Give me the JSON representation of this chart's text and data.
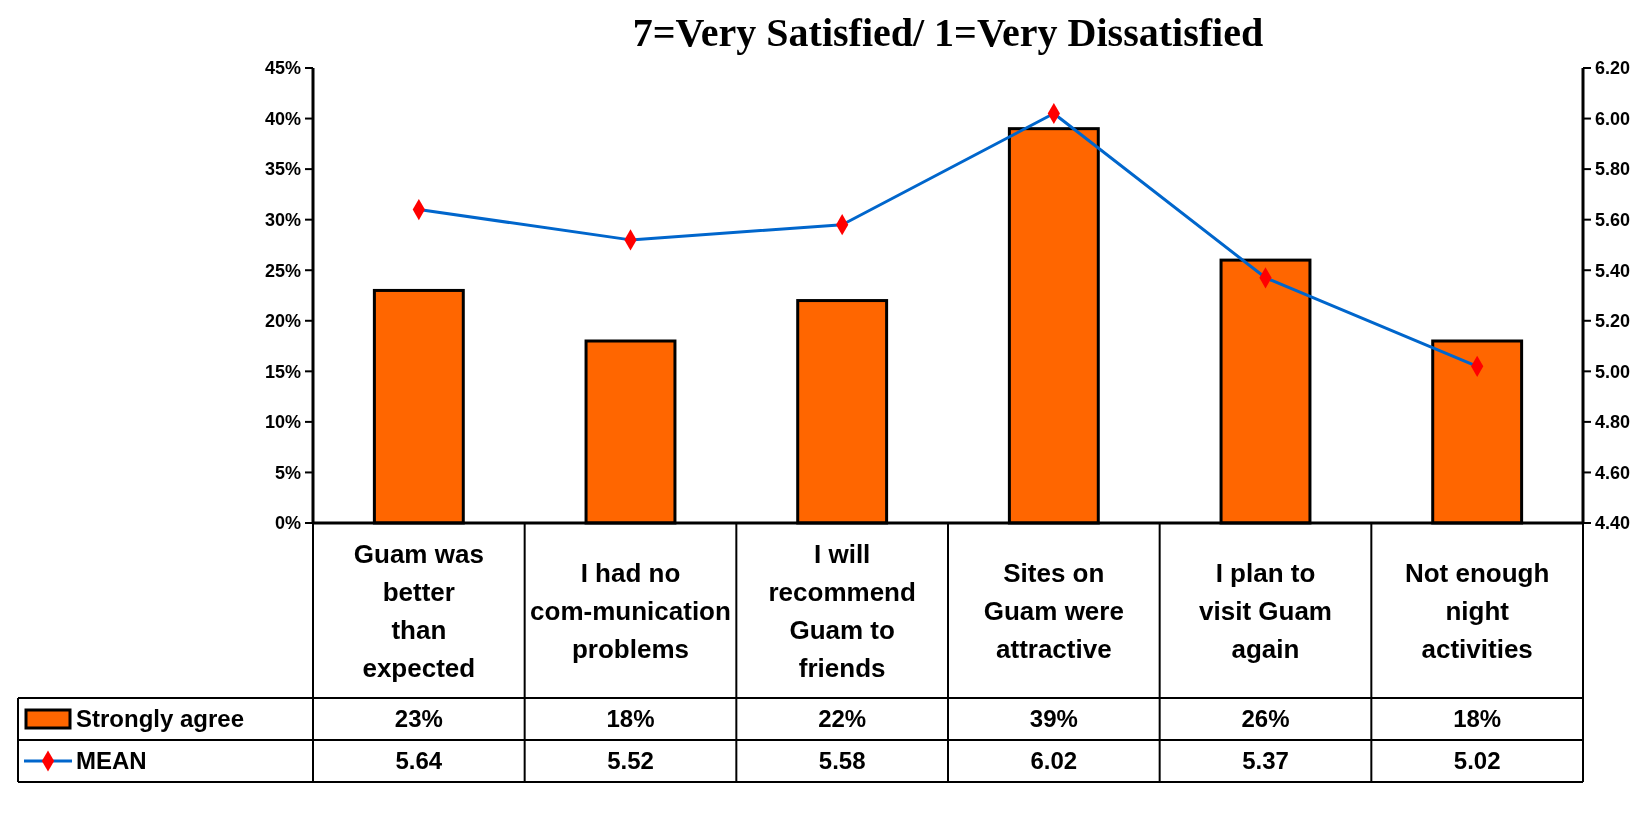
{
  "chart_data": {
    "type": "bar",
    "title": "7=Very Satisfied/ 1=Very Dissatisfied",
    "categories": [
      "Guam was better than expected",
      "I had no com-munication problems",
      "I will recommend Guam to friends",
      "Sites on Guam were attractive",
      "I plan to visit Guam again",
      "Not enough night activities"
    ],
    "series": [
      {
        "name": "Strongly agree",
        "color": "#ff6600",
        "values": [
          23,
          18,
          22,
          39,
          26,
          18
        ]
      },
      {
        "name": "MEAN",
        "type": "line",
        "axis": "y2",
        "color": "#0066cc",
        "marker": "diamond",
        "values": [
          5.64,
          5.52,
          5.58,
          6.02,
          5.37,
          5.02
        ]
      }
    ],
    "value_labels": [
      [
        "23%",
        "18%",
        "22%",
        "39%",
        "26%",
        "18%"
      ],
      [
        "5.64",
        "5.52",
        "5.58",
        "6.02",
        "5.37",
        "5.02"
      ]
    ],
    "ylim": [
      0,
      45
    ],
    "yticks": [
      {
        "value": 0,
        "label": "0%"
      },
      {
        "value": 5,
        "label": "5%"
      },
      {
        "value": 10,
        "label": "10%"
      },
      {
        "value": 15,
        "label": "15%"
      },
      {
        "value": 20,
        "label": "20%"
      },
      {
        "value": 25,
        "label": "25%"
      },
      {
        "value": 30,
        "label": "30%"
      },
      {
        "value": 35,
        "label": "35%"
      },
      {
        "value": 40,
        "label": "40%"
      },
      {
        "value": 45,
        "label": "45%"
      }
    ],
    "y2lim": [
      4.4,
      6.2
    ],
    "y2ticks": [
      {
        "value": 4.4,
        "label": "4.40"
      },
      {
        "value": 4.6,
        "label": "4.60"
      },
      {
        "value": 4.8,
        "label": "4.80"
      },
      {
        "value": 5.0,
        "label": "5.00"
      },
      {
        "value": 5.2,
        "label": "5.20"
      },
      {
        "value": 5.4,
        "label": "5.40"
      },
      {
        "value": 5.6,
        "label": "5.60"
      },
      {
        "value": 5.8,
        "label": "5.80"
      },
      {
        "value": 6.0,
        "label": "6.00"
      },
      {
        "value": 6.2,
        "label": "6.20"
      }
    ],
    "grid": false,
    "legend": "bottom left",
    "line_style": "solid"
  }
}
